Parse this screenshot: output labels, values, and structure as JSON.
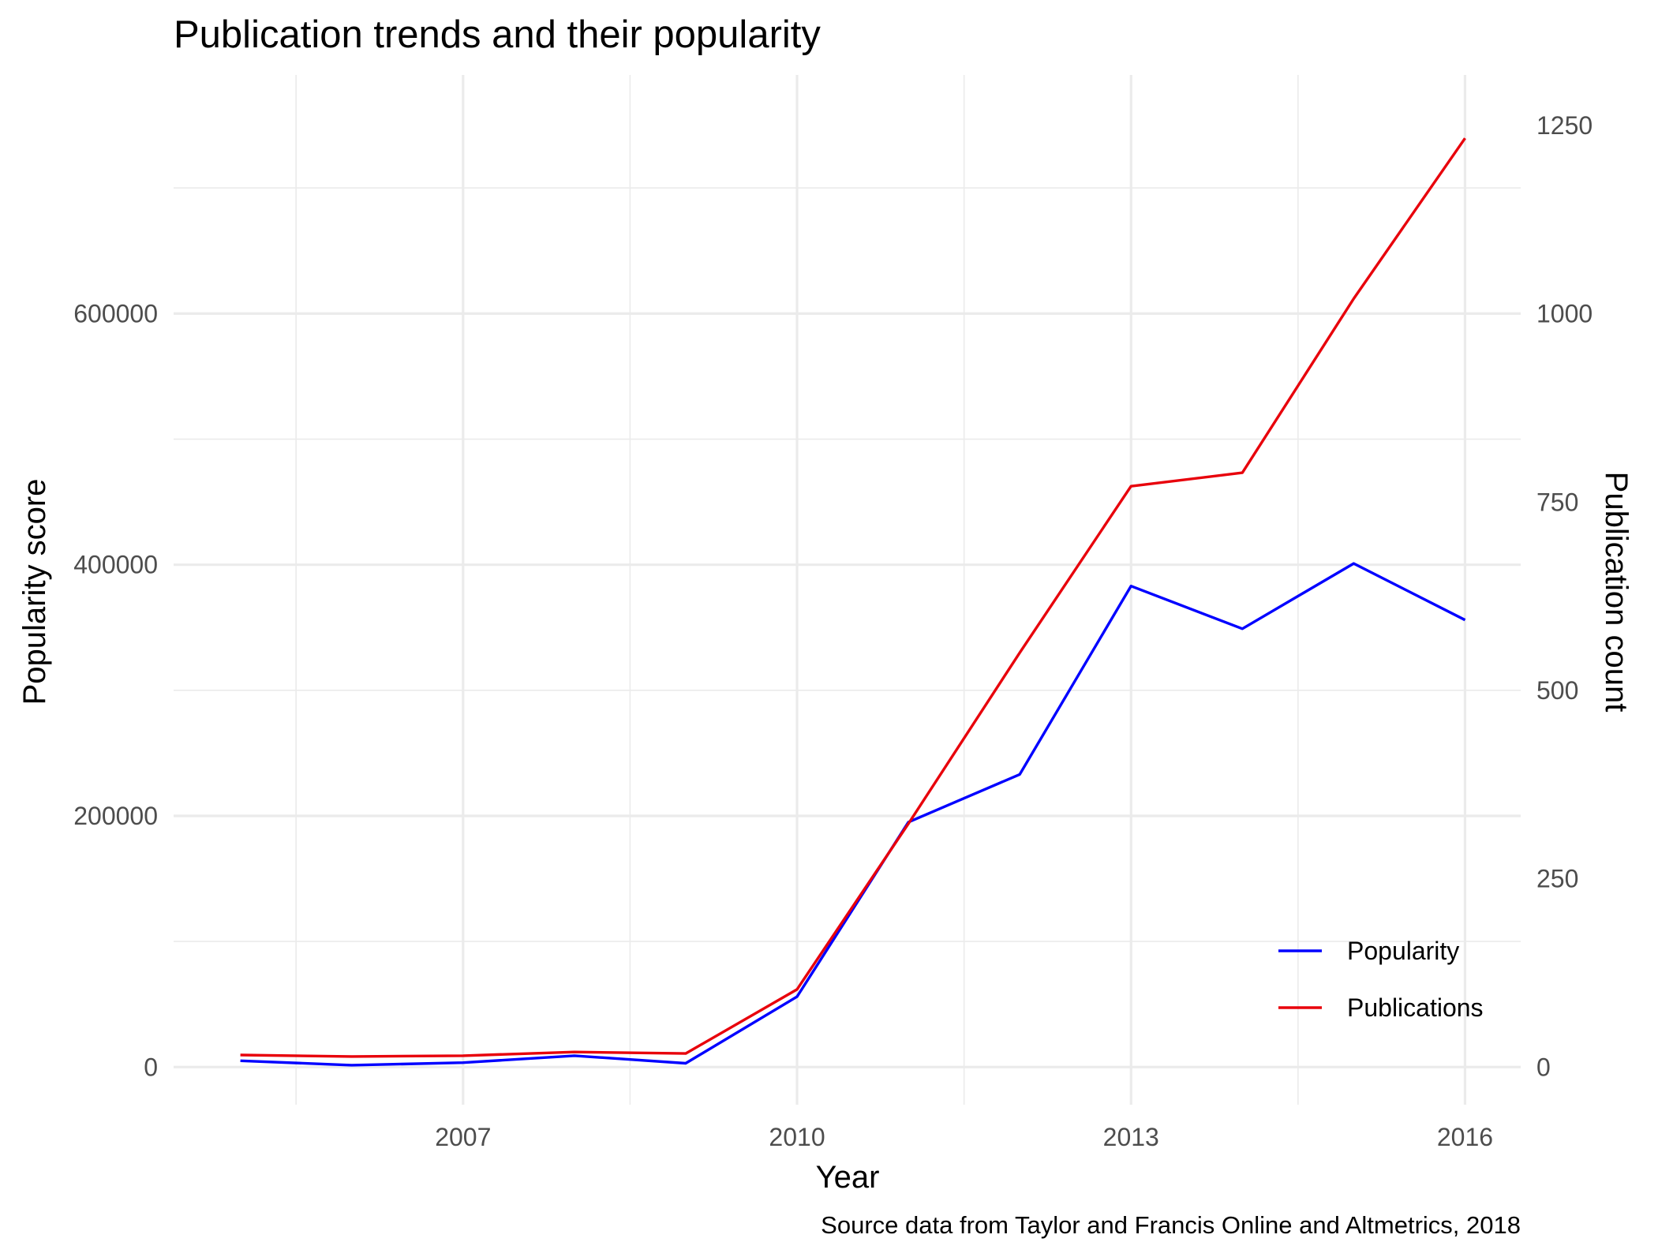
{
  "chart_data": {
    "type": "line",
    "title": "Publication trends and their popularity",
    "xlabel": "Year",
    "ylabel": "Popularity score",
    "y2label": "Publication count",
    "caption": "Source data from Taylor and Francis Online and Altmetrics, 2018",
    "x": [
      2005,
      2006,
      2007,
      2008,
      2009,
      2010,
      2011,
      2012,
      2013,
      2014,
      2015,
      2016
    ],
    "xlim": [
      2004.4,
      2016.5
    ],
    "x_ticks": [
      2007,
      2010,
      2013,
      2016
    ],
    "x_tick_labels": [
      "2007",
      "2010",
      "2013",
      "2016"
    ],
    "ylim": [
      -30000,
      790000
    ],
    "y_ticks": [
      0,
      200000,
      400000,
      600000
    ],
    "y_tick_labels": [
      "0",
      "200000",
      "400000",
      "600000"
    ],
    "y2lim": [
      -50,
      1317
    ],
    "y2_ticks": [
      0,
      250,
      500,
      750,
      1000,
      1250
    ],
    "y2_tick_labels": [
      "0",
      "250",
      "500",
      "750",
      "1000",
      "1250"
    ],
    "grid": true,
    "legend_position": "bottom-right",
    "series": [
      {
        "name": "Popularity",
        "axis": "left",
        "color": "#0000ff",
        "values": [
          5000,
          1500,
          3500,
          9000,
          3000,
          56000,
          195000,
          233000,
          383000,
          349000,
          401000,
          356000
        ]
      },
      {
        "name": "Publications",
        "axis": "right",
        "color": "#e8000b",
        "values": [
          16,
          14,
          15,
          20,
          18,
          103,
          323,
          550,
          771,
          789,
          1020,
          1233
        ]
      }
    ]
  }
}
